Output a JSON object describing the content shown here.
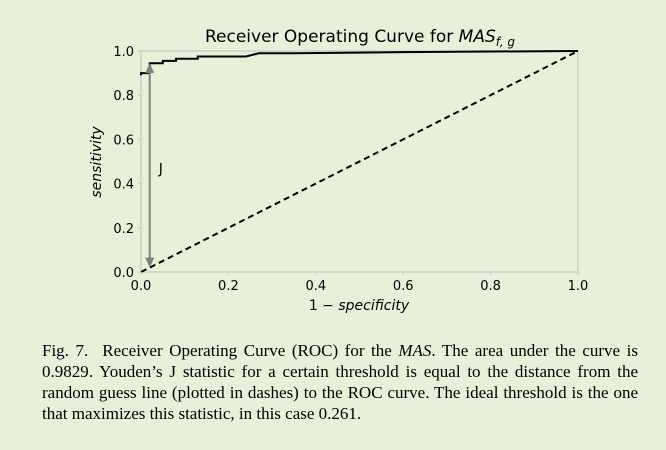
{
  "chart_data": {
    "type": "line",
    "title": "Receiver Operating Curve for MAS",
    "title_main": "Receiver Operating Curve for ",
    "title_italic": "MAS",
    "title_subscript": "f, g",
    "xlabel_prefix": "1 − ",
    "xlabel_italic": "specificity",
    "ylabel": "sensitivity",
    "xlim": [
      0,
      1
    ],
    "ylim": [
      0,
      1
    ],
    "x_ticks": [
      "0.0",
      "0.2",
      "0.4",
      "0.6",
      "0.8",
      "1.0"
    ],
    "y_ticks": [
      "0.0",
      "0.2",
      "0.4",
      "0.6",
      "0.8",
      "1.0"
    ],
    "series": [
      {
        "style": "solid",
        "x": [
          0.0,
          0.0,
          0.02,
          0.02,
          0.05,
          0.05,
          0.08,
          0.08,
          0.13,
          0.13,
          0.24,
          0.27,
          0.35,
          0.6,
          1.0
        ],
        "y": [
          0.89,
          0.9,
          0.9,
          0.945,
          0.945,
          0.955,
          0.955,
          0.965,
          0.965,
          0.975,
          0.975,
          0.99,
          0.99,
          0.995,
          1.0
        ]
      },
      {
        "style": "dashed",
        "x": [
          0.0,
          1.0
        ],
        "y": [
          0.0,
          1.0
        ]
      }
    ],
    "annotation": {
      "text": "J",
      "x": 0.02,
      "y_from": 0.02,
      "y_to": 0.945
    },
    "grid": false
  },
  "caption": {
    "label": "Fig. 7.",
    "text_before": "Receiver Operating Curve (ROC) for the ",
    "italic": "MAS",
    "text_after": ". The area under the curve is 0.9829. Youden’s J statistic for a certain threshold is equal to the distance from the random guess line (plotted in dashes) to the ROC curve. The ideal threshold is the one that maximizes this statistic, in this case 0.261."
  },
  "colors": {
    "background": "#e8f0d9",
    "frame": "#c8c8c8",
    "line": "#000000",
    "arrow": "#7f7f7f"
  }
}
